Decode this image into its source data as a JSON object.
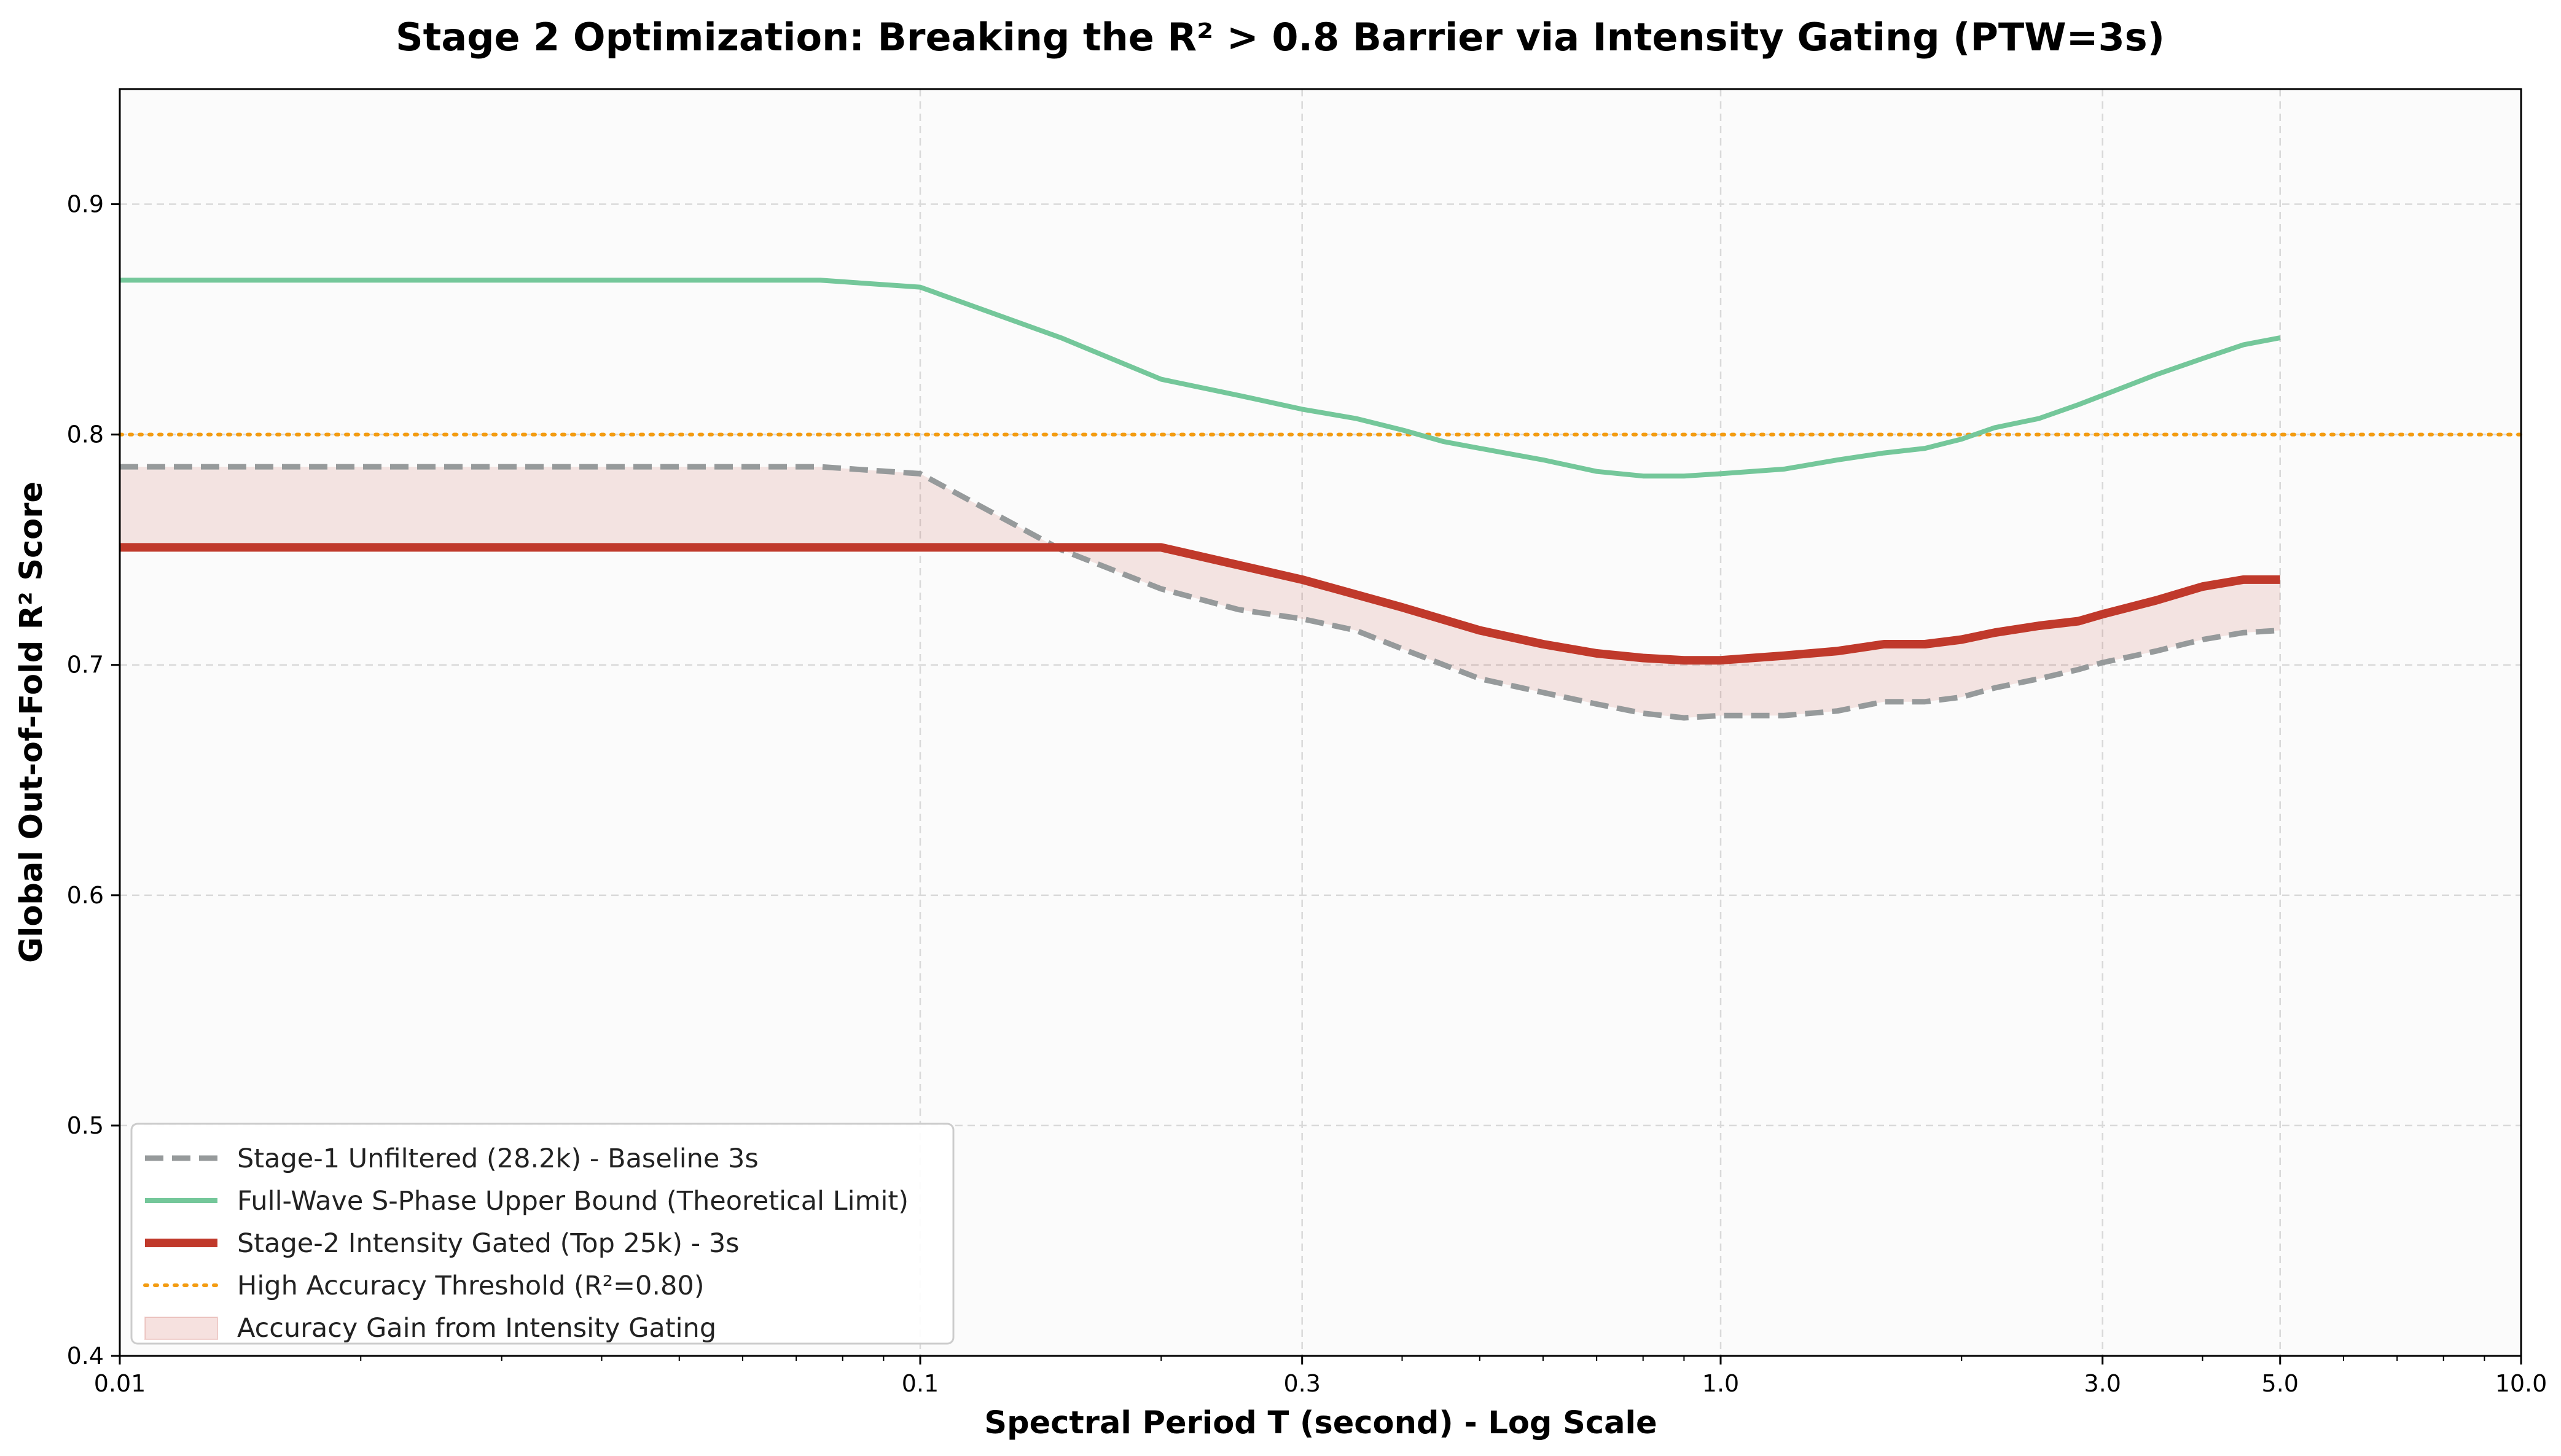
{
  "chart_data": {
    "type": "line",
    "title": "Stage 2 Optimization: Breaking the R² > 0.8 Barrier via Intensity Gating (PTW=3s)",
    "xlabel": "Spectral Period T (second) - Log Scale",
    "ylabel": "Global Out-of-Fold R² Score",
    "x_scale": "log",
    "xlim": [
      0.01,
      10.0
    ],
    "ylim": [
      0.4,
      0.95
    ],
    "x_ticks": [
      {
        "value": 0.01,
        "label": "0.01"
      },
      {
        "value": 0.1,
        "label": "0.1"
      },
      {
        "value": 0.3,
        "label": "0.3"
      },
      {
        "value": 1.0,
        "label": "1.0"
      },
      {
        "value": 3.0,
        "label": "3.0"
      },
      {
        "value": 5.0,
        "label": "5.0"
      },
      {
        "value": 10.0,
        "label": "10.0"
      }
    ],
    "y_ticks": [
      {
        "value": 0.4,
        "label": "0.4"
      },
      {
        "value": 0.5,
        "label": "0.5"
      },
      {
        "value": 0.6,
        "label": "0.6"
      },
      {
        "value": 0.7,
        "label": "0.7"
      },
      {
        "value": 0.8,
        "label": "0.8"
      },
      {
        "value": 0.9,
        "label": "0.9"
      }
    ],
    "grid": true,
    "legend_position": "lower-left",
    "series": [
      {
        "name": "Stage-1 Unfiltered (28.2k) - Baseline 3s",
        "style": "dashed",
        "color": "#969a9b",
        "points": [
          [
            0.01,
            0.786
          ],
          [
            0.075,
            0.786
          ],
          [
            0.1,
            0.783
          ],
          [
            0.15,
            0.75
          ],
          [
            0.2,
            0.733
          ],
          [
            0.25,
            0.724
          ],
          [
            0.3,
            0.72
          ],
          [
            0.35,
            0.715
          ],
          [
            0.4,
            0.707
          ],
          [
            0.5,
            0.694
          ],
          [
            0.6,
            0.688
          ],
          [
            0.7,
            0.683
          ],
          [
            0.8,
            0.679
          ],
          [
            0.9,
            0.677
          ],
          [
            1.0,
            0.678
          ],
          [
            1.2,
            0.678
          ],
          [
            1.4,
            0.68
          ],
          [
            1.6,
            0.684
          ],
          [
            1.8,
            0.684
          ],
          [
            2.0,
            0.686
          ],
          [
            2.2,
            0.69
          ],
          [
            2.5,
            0.694
          ],
          [
            2.8,
            0.698
          ],
          [
            3.0,
            0.701
          ],
          [
            3.5,
            0.706
          ],
          [
            4.0,
            0.711
          ],
          [
            4.5,
            0.714
          ],
          [
            5.0,
            0.715
          ]
        ]
      },
      {
        "name": "Full-Wave S-Phase Upper Bound (Theoretical Limit)",
        "style": "solid",
        "color": "#74c79a",
        "points": [
          [
            0.01,
            0.867
          ],
          [
            0.075,
            0.867
          ],
          [
            0.1,
            0.864
          ],
          [
            0.15,
            0.842
          ],
          [
            0.2,
            0.824
          ],
          [
            0.25,
            0.817
          ],
          [
            0.3,
            0.811
          ],
          [
            0.35,
            0.807
          ],
          [
            0.4,
            0.802
          ],
          [
            0.45,
            0.797
          ],
          [
            0.5,
            0.794
          ],
          [
            0.6,
            0.789
          ],
          [
            0.7,
            0.784
          ],
          [
            0.8,
            0.782
          ],
          [
            0.9,
            0.782
          ],
          [
            1.0,
            0.783
          ],
          [
            1.2,
            0.785
          ],
          [
            1.4,
            0.789
          ],
          [
            1.6,
            0.792
          ],
          [
            1.8,
            0.794
          ],
          [
            2.0,
            0.798
          ],
          [
            2.2,
            0.803
          ],
          [
            2.5,
            0.807
          ],
          [
            2.8,
            0.813
          ],
          [
            3.0,
            0.817
          ],
          [
            3.5,
            0.826
          ],
          [
            4.0,
            0.833
          ],
          [
            4.5,
            0.839
          ],
          [
            5.0,
            0.842
          ]
        ]
      },
      {
        "name": "Stage-2 Intensity Gated (Top 25k) - 3s",
        "style": "solid-thick",
        "color": "#c0392b",
        "points": [
          [
            0.01,
            0.751
          ],
          [
            0.1,
            0.751
          ],
          [
            0.2,
            0.751
          ],
          [
            0.3,
            0.737
          ],
          [
            0.4,
            0.725
          ],
          [
            0.5,
            0.715
          ],
          [
            0.6,
            0.709
          ],
          [
            0.7,
            0.705
          ],
          [
            0.8,
            0.703
          ],
          [
            0.9,
            0.702
          ],
          [
            1.0,
            0.702
          ],
          [
            1.2,
            0.704
          ],
          [
            1.4,
            0.706
          ],
          [
            1.6,
            0.709
          ],
          [
            1.8,
            0.709
          ],
          [
            2.0,
            0.711
          ],
          [
            2.2,
            0.714
          ],
          [
            2.5,
            0.717
          ],
          [
            2.8,
            0.719
          ],
          [
            3.0,
            0.722
          ],
          [
            3.5,
            0.728
          ],
          [
            4.0,
            0.734
          ],
          [
            4.5,
            0.737
          ],
          [
            5.0,
            0.737
          ]
        ]
      }
    ],
    "threshold": {
      "name": "High Accuracy Threshold (R²=0.80)",
      "value": 0.8,
      "color": "#f39c12",
      "style": "dotted"
    },
    "fill_between": {
      "name": "Accuracy Gain from Intensity Gating",
      "between": [
        "Stage-1 Unfiltered (28.2k) - Baseline 3s",
        "Stage-2 Intensity Gated (Top 25k) - 3s"
      ],
      "color": "#c0392b",
      "opacity": 0.12
    }
  }
}
